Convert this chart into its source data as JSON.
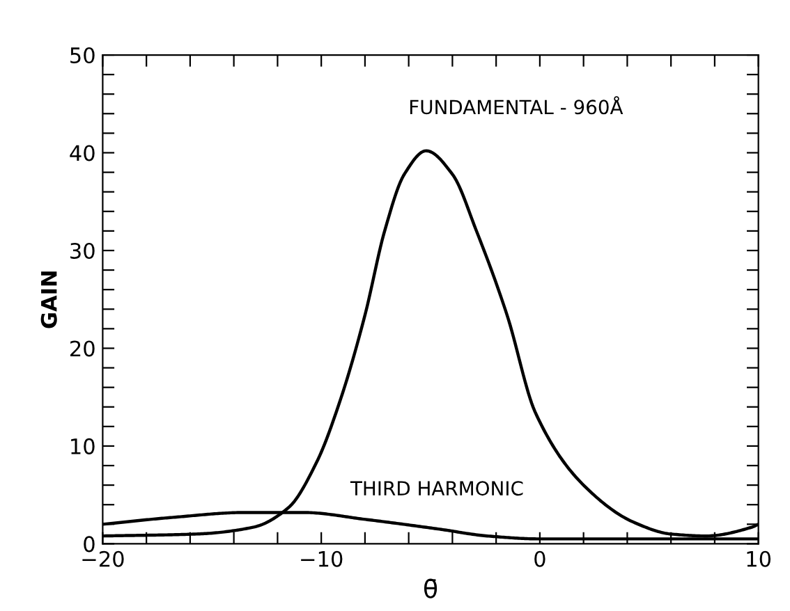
{
  "chart_data": {
    "type": "line",
    "xlabel": "θ̄",
    "ylabel": "GAIN",
    "xlim": [
      -20,
      10
    ],
    "ylim": [
      0,
      50
    ],
    "xticks": [
      -20,
      {
        "value": -18,
        "label": null
      },
      {
        "value": -16,
        "label": null
      },
      {
        "value": -14,
        "label": null
      },
      {
        "value": -12,
        "label": null
      },
      -10,
      {
        "value": -8,
        "label": null
      },
      {
        "value": -6,
        "label": null
      },
      {
        "value": -4,
        "label": null
      },
      {
        "value": -2,
        "label": null
      },
      0,
      {
        "value": 2,
        "label": null
      },
      {
        "value": 4,
        "label": null
      },
      {
        "value": 6,
        "label": null
      },
      {
        "value": 8,
        "label": null
      },
      10
    ],
    "yticks": [
      0,
      {
        "value": 2,
        "label": null
      },
      {
        "value": 4,
        "label": null
      },
      {
        "value": 6,
        "label": null
      },
      {
        "value": 8,
        "label": null
      },
      10,
      {
        "value": 12,
        "label": null
      },
      {
        "value": 14,
        "label": null
      },
      {
        "value": 16,
        "label": null
      },
      {
        "value": 18,
        "label": null
      },
      20,
      {
        "value": 22,
        "label": null
      },
      {
        "value": 24,
        "label": null
      },
      {
        "value": 26,
        "label": null
      },
      {
        "value": 28,
        "label": null
      },
      30,
      {
        "value": 32,
        "label": null
      },
      {
        "value": 34,
        "label": null
      },
      {
        "value": 36,
        "label": null
      },
      {
        "value": 38,
        "label": null
      },
      40,
      {
        "value": 42,
        "label": null
      },
      {
        "value": 44,
        "label": null
      },
      {
        "value": 46,
        "label": null
      },
      {
        "value": 48,
        "label": null
      },
      50
    ],
    "grid": false,
    "legend": false,
    "marker": "none",
    "line_style": "solid",
    "series": [
      {
        "color": "#000000",
        "x": [
          -20,
          -15.7,
          -13.1,
          -11.5,
          -10.2,
          -9.1,
          -8,
          -7.1,
          -6.2,
          -5.2,
          -4,
          -2.9,
          -1.5,
          -0.2,
          2,
          4.3,
          6,
          7.6,
          9.7,
          10
        ],
        "values": [
          0.8,
          1.0,
          1.7,
          3.7,
          8.4,
          14.9,
          23.4,
          32,
          37.8,
          40.2,
          37.8,
          32,
          23.4,
          13.4,
          6.0,
          2.2,
          1.0,
          0.8,
          1.7,
          2.0
        ]
      },
      {
        "color": "#000000",
        "x": [
          -20,
          -16.8,
          -13.5,
          -10.8,
          -8,
          -4.6,
          -2.4,
          0,
          4.3,
          10
        ],
        "values": [
          2.0,
          2.7,
          3.2,
          3.2,
          2.5,
          1.5,
          0.8,
          0.5,
          0.5,
          0.5
        ]
      }
    ],
    "annotations": [
      "FUNDAMENTAL - 960Å",
      "THIRD HARMONIC"
    ]
  }
}
